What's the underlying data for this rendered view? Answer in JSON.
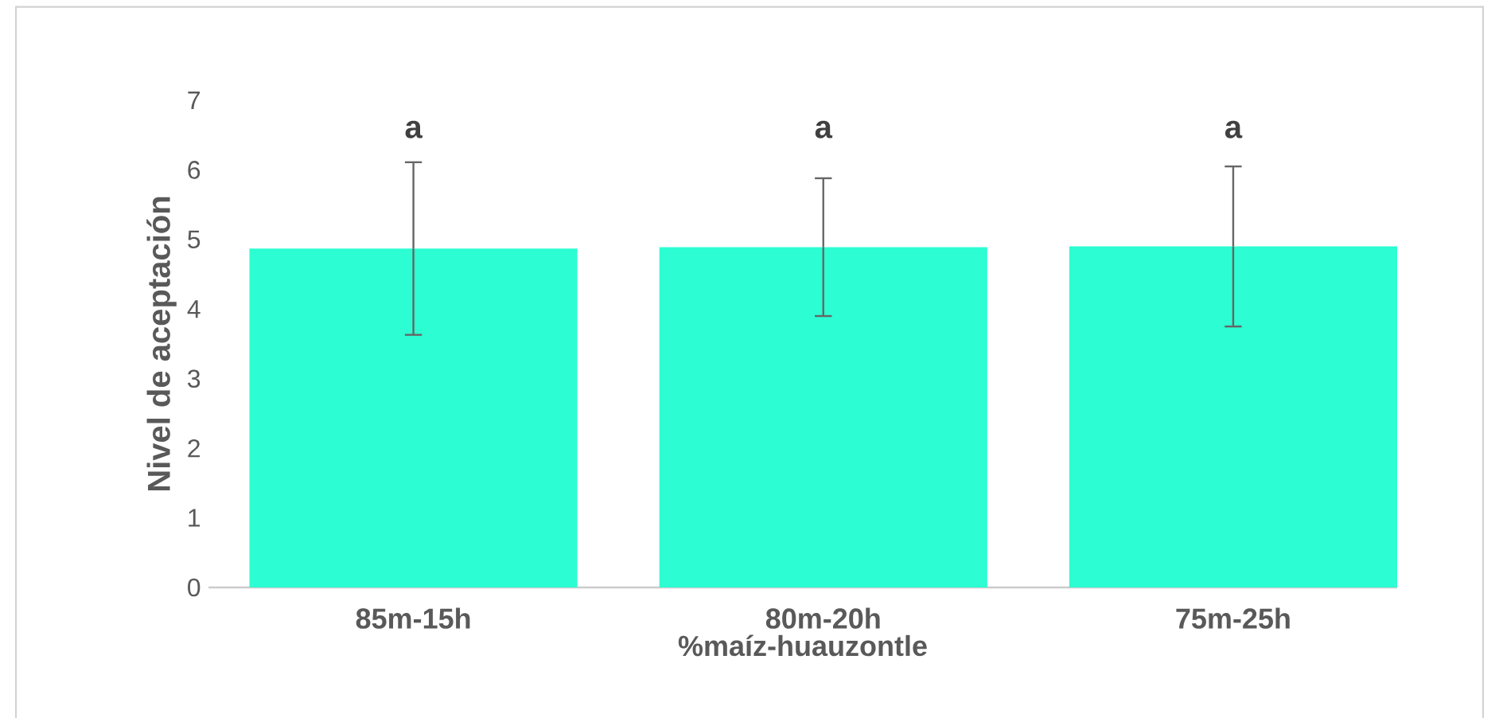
{
  "chart_data": {
    "type": "bar",
    "categories": [
      "85m-15h",
      "80m-20h",
      "75m-25h"
    ],
    "values": [
      4.87,
      4.89,
      4.9
    ],
    "errors": [
      1.24,
      0.99,
      1.15
    ],
    "color": "#2cfdd2",
    "xlabel": "%maíz-huauzontle",
    "ylabel": "Nivel de aceptación",
    "ylim": [
      0,
      7
    ],
    "yticks": [
      0,
      1,
      2,
      3,
      4,
      5,
      6,
      7
    ],
    "grid": false,
    "annotations": [
      "a",
      "a",
      "a"
    ]
  }
}
